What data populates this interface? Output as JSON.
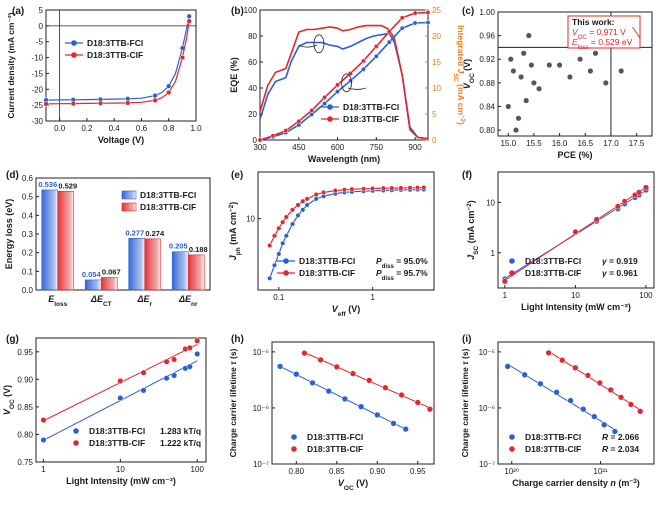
{
  "colors": {
    "blue": "#2a5fd6",
    "red": "#e0282e",
    "orange": "#ef7c1a",
    "gray": "#555555",
    "dark": "#1a1a1a"
  },
  "chart_data": [
    {
      "id": "a",
      "type": "line",
      "panel_label": "(a)",
      "xlabel": "Voltage (V)",
      "ylabel": "Current density (mA cm⁻²)",
      "xlim": [
        -0.1,
        1.0
      ],
      "ylim": [
        -30,
        5
      ],
      "xticks": [
        "0.0",
        "0.2",
        "0.4",
        "0.6",
        "0.8",
        "1.0"
      ],
      "yticks": [
        "-30",
        "-25",
        "-20",
        "-15",
        "-10",
        "-5",
        "0",
        "5"
      ],
      "series": [
        {
          "name": "D18:3TTB-FCl",
          "color": "#2a5fd6",
          "x": [
            -0.1,
            0.0,
            0.1,
            0.2,
            0.3,
            0.4,
            0.5,
            0.6,
            0.7,
            0.75,
            0.8,
            0.85,
            0.9,
            0.93,
            0.95
          ],
          "y": [
            -23.4,
            -23.35,
            -23.3,
            -23.25,
            -23.2,
            -23.1,
            -23.0,
            -22.8,
            -22.0,
            -21.0,
            -19.0,
            -15.0,
            -7.0,
            -1.0,
            3.0
          ]
        },
        {
          "name": "D18:3TTB-ClF",
          "color": "#e0282e",
          "x": [
            -0.1,
            0.0,
            0.1,
            0.2,
            0.3,
            0.4,
            0.5,
            0.6,
            0.7,
            0.75,
            0.8,
            0.85,
            0.9,
            0.93,
            0.95
          ],
          "y": [
            -24.6,
            -24.55,
            -24.5,
            -24.45,
            -24.4,
            -24.35,
            -24.3,
            -24.1,
            -23.5,
            -22.7,
            -21.0,
            -17.5,
            -10.0,
            -4.0,
            1.5
          ]
        }
      ]
    },
    {
      "id": "b",
      "type": "line",
      "panel_label": "(b)",
      "xlabel": "Wavelength (nm)",
      "ylabel": "EQE (%)",
      "y2label": "Integrated J_SC (mA cm⁻²)",
      "xlim": [
        300,
        950
      ],
      "ylim": [
        0,
        100
      ],
      "y2lim": [
        0,
        25
      ],
      "xticks": [
        "300",
        "450",
        "600",
        "750",
        "900"
      ],
      "yticks": [
        "0",
        "20",
        "40",
        "60",
        "80",
        "100"
      ],
      "y2ticks": [
        "0",
        "5",
        "10",
        "15",
        "20",
        "25"
      ],
      "series": [
        {
          "name": "D18:3TTB-FCl EQE",
          "color": "#2a5fd6",
          "x": [
            300,
            330,
            360,
            400,
            420,
            450,
            480,
            510,
            540,
            570,
            600,
            620,
            650,
            680,
            710,
            740,
            770,
            800,
            820,
            850,
            880,
            910,
            950
          ],
          "y": [
            16,
            35,
            45,
            48,
            60,
            72,
            75,
            75,
            75,
            73,
            72,
            70,
            72,
            75,
            78,
            80,
            81,
            82,
            75,
            50,
            10,
            2,
            1
          ]
        },
        {
          "name": "D18:3TTB-ClF EQE",
          "color": "#e0282e",
          "x": [
            300,
            330,
            360,
            400,
            420,
            450,
            480,
            510,
            540,
            570,
            600,
            620,
            650,
            680,
            710,
            740,
            770,
            800,
            820,
            850,
            880,
            910,
            950
          ],
          "y": [
            22,
            42,
            52,
            55,
            66,
            83,
            85,
            85,
            86,
            87,
            86,
            84,
            85,
            87,
            88,
            88,
            88,
            85,
            78,
            50,
            8,
            2,
            1
          ]
        },
        {
          "name": "D18:3TTB-FCl Integrated J_SC",
          "color": "#2a5fd6",
          "axis": "right",
          "x": [
            300,
            350,
            400,
            450,
            500,
            550,
            600,
            650,
            700,
            750,
            800,
            850,
            900,
            950
          ],
          "y": [
            0,
            0.6,
            1.4,
            2.9,
            4.9,
            7.0,
            9.3,
            11.4,
            13.6,
            16.1,
            18.8,
            21.5,
            22.5,
            22.6
          ]
        },
        {
          "name": "D18:3TTB-ClF Integrated J_SC",
          "color": "#e0282e",
          "axis": "right",
          "x": [
            300,
            350,
            400,
            450,
            500,
            550,
            600,
            650,
            700,
            750,
            800,
            850,
            900,
            950
          ],
          "y": [
            0,
            0.8,
            1.8,
            3.6,
            5.7,
            8.2,
            10.6,
            12.8,
            15.2,
            18.0,
            20.8,
            23.5,
            24.4,
            24.5
          ]
        }
      ]
    },
    {
      "id": "c",
      "type": "scatter",
      "panel_label": "(c)",
      "xlabel": "PCE (%)",
      "ylabel": "V_OC (V)",
      "xlim": [
        14.8,
        17.8
      ],
      "ylim": [
        0.79,
        1.0
      ],
      "xticks": [
        "15.0",
        "15.5",
        "16.0",
        "16.5",
        "17.0",
        "17.5"
      ],
      "yticks": [
        "0.80",
        "0.84",
        "0.88",
        "0.92",
        "0.96",
        "1.00"
      ],
      "reference_lines": {
        "x": 17.0,
        "y": 0.94
      },
      "points_x": [
        15.0,
        15.1,
        15.2,
        15.3,
        15.4,
        15.5,
        15.6,
        15.05,
        15.25,
        15.45,
        15.8,
        16.0,
        16.2,
        16.4,
        16.6,
        16.9,
        17.2,
        15.15,
        15.35,
        16.7
      ],
      "points_y": [
        0.84,
        0.9,
        0.82,
        0.93,
        0.96,
        0.88,
        0.87,
        0.92,
        0.89,
        0.91,
        0.91,
        0.91,
        0.89,
        0.92,
        0.9,
        0.88,
        0.9,
        0.8,
        0.85,
        0.93
      ],
      "highlight": {
        "x": 17.5,
        "y": 0.971,
        "color": "#e0282e"
      },
      "annotation": {
        "line1": "This work:",
        "line2": "V_OC = 0.971 V",
        "line3": "E_loss = 0.529 eV",
        "voc_label": "V",
        "voc_sub": "OC",
        "voc_value": " = 0.971 V",
        "eloss_label": "E",
        "eloss_sub": "loss",
        "eloss_value": " = 0.529 eV"
      }
    },
    {
      "id": "d",
      "type": "bar",
      "panel_label": "(d)",
      "ylabel": "Energy loss (eV)",
      "ylim": [
        0,
        0.6
      ],
      "yticks": [
        "0.0",
        "0.1",
        "0.2",
        "0.3",
        "0.4",
        "0.5",
        "0.6"
      ],
      "categories": [
        "E_loss",
        "ΔE_CT",
        "ΔE_r",
        "ΔE_nr"
      ],
      "category_labels": [
        {
          "main": "E",
          "sub": "loss"
        },
        {
          "main": "ΔE",
          "sub": "CT"
        },
        {
          "main": "ΔE",
          "sub": "r"
        },
        {
          "main": "ΔE",
          "sub": "nr"
        }
      ],
      "series": [
        {
          "name": "D18:3TTB-FCl",
          "color": "#2a5fd6",
          "values": [
            0.536,
            0.054,
            0.277,
            0.205
          ],
          "labels": [
            "0.536",
            "0.054",
            "0.277",
            "0.205"
          ]
        },
        {
          "name": "D18:3TTB-ClF",
          "color": "#e0282e",
          "values": [
            0.529,
            0.067,
            0.274,
            0.188
          ],
          "labels": [
            "0.529",
            "0.067",
            "0.274",
            "0.188"
          ]
        }
      ]
    },
    {
      "id": "e",
      "type": "line",
      "panel_label": "(e)",
      "xscale": "log",
      "yscale": "log",
      "xlabel": "V_eff (V)",
      "ylabel": "J_ph (mA cm⁻²)",
      "xlim": [
        0.06,
        4.5
      ],
      "ylim": [
        1.2,
        40
      ],
      "xticks": [
        "0.1",
        "1"
      ],
      "yticks": [
        "10"
      ],
      "series": [
        {
          "name": "D18:3TTB-FCl",
          "color": "#2a5fd6",
          "stat_label": "P",
          "stat_sub": "diss",
          "stat_value": " = 95.0%",
          "x": [
            0.08,
            0.09,
            0.1,
            0.11,
            0.12,
            0.14,
            0.16,
            0.18,
            0.2,
            0.25,
            0.3,
            0.4,
            0.5,
            0.6,
            0.8,
            1.0,
            1.3,
            1.6,
            2.0,
            2.5,
            3.0,
            3.5
          ],
          "y": [
            1.7,
            2.5,
            3.5,
            4.8,
            6.0,
            8.5,
            11,
            13,
            15,
            18,
            19.5,
            21,
            21.8,
            22.2,
            22.6,
            22.9,
            23.1,
            23.3,
            23.5,
            23.6,
            23.7,
            23.8
          ]
        },
        {
          "name": "D18:3TTB-ClF",
          "color": "#e0282e",
          "stat_label": "P",
          "stat_sub": "diss",
          "stat_value": " = 95.7%",
          "x": [
            0.08,
            0.09,
            0.1,
            0.11,
            0.12,
            0.14,
            0.16,
            0.18,
            0.2,
            0.25,
            0.3,
            0.4,
            0.5,
            0.6,
            0.8,
            1.0,
            1.3,
            1.6,
            2.0,
            2.5,
            3.0,
            3.5
          ],
          "y": [
            4.5,
            6.0,
            7.5,
            9.0,
            10.5,
            13,
            15,
            16.8,
            18,
            20.5,
            21.8,
            23,
            23.6,
            24,
            24.3,
            24.5,
            24.7,
            24.8,
            24.9,
            25.0,
            25.1,
            25.2
          ]
        }
      ]
    },
    {
      "id": "f",
      "type": "scatter",
      "panel_label": "(f)",
      "xscale": "log",
      "yscale": "log",
      "xlabel": "Light Intensity (mW cm⁻²)",
      "ylabel": "J_SC (mA cm⁻²)",
      "xlim": [
        0.8,
        130
      ],
      "ylim": [
        0.2,
        40
      ],
      "xticks": [
        "1",
        "10",
        "100"
      ],
      "yticks": [
        "1",
        "10"
      ],
      "series": [
        {
          "name": "D18:3TTB-FCl",
          "color": "#2a5fd6",
          "stat_label": "γ",
          "stat_value": " = 0.919",
          "x": [
            1,
            10,
            20,
            40,
            50,
            70,
            80,
            100
          ],
          "y": [
            0.3,
            2.5,
            4.2,
            7.4,
            9.3,
            12.5,
            14.0,
            17.5
          ]
        },
        {
          "name": "D18:3TTB-ClF",
          "color": "#e0282e",
          "stat_label": "γ",
          "stat_value": " = 0.961",
          "x": [
            1,
            10,
            20,
            40,
            50,
            70,
            80,
            100
          ],
          "y": [
            0.27,
            2.6,
            4.6,
            8.3,
            10.5,
            14.0,
            15.8,
            19.8
          ]
        }
      ]
    },
    {
      "id": "g",
      "type": "scatter",
      "panel_label": "(g)",
      "xscale": "log",
      "xlabel": "Light Intensity (mW cm⁻²)",
      "ylabel": "V_OC (V)",
      "xlim": [
        0.8,
        130
      ],
      "ylim": [
        0.75,
        0.975
      ],
      "xticks": [
        "1",
        "10",
        "100"
      ],
      "yticks": [
        "0.75",
        "0.80",
        "0.85",
        "0.90",
        "0.95"
      ],
      "series": [
        {
          "name": "D18:3TTB-FCl",
          "color": "#2a5fd6",
          "stat_value": "1.283 kT/q",
          "x": [
            1,
            10,
            20,
            40,
            50,
            70,
            80,
            100
          ],
          "y": [
            0.79,
            0.866,
            0.88,
            0.902,
            0.907,
            0.92,
            0.923,
            0.946
          ]
        },
        {
          "name": "D18:3TTB-ClF",
          "color": "#e0282e",
          "stat_value": "1.222 kT/q",
          "x": [
            1,
            10,
            20,
            40,
            50,
            70,
            80,
            100
          ],
          "y": [
            0.826,
            0.897,
            0.912,
            0.932,
            0.936,
            0.955,
            0.957,
            0.97
          ]
        }
      ]
    },
    {
      "id": "h",
      "type": "scatter",
      "panel_label": "(h)",
      "yscale": "log",
      "xlabel": "V_OC (V)",
      "ylabel": "Charge carrier lifetime τ (s)",
      "xlim": [
        0.77,
        0.97
      ],
      "ylim": [
        1e-07,
        1.5e-05
      ],
      "xticks": [
        "0.80",
        "0.85",
        "0.90",
        "0.95"
      ],
      "yticks": [
        "10⁻⁷",
        "10⁻⁶",
        "10⁻⁵"
      ],
      "series": [
        {
          "name": "D18:3TTB-FCl",
          "color": "#2a5fd6",
          "x": [
            0.78,
            0.8,
            0.82,
            0.84,
            0.86,
            0.88,
            0.9,
            0.92,
            0.935
          ],
          "y": [
            5.5e-06,
            4e-06,
            2.8e-06,
            2e-06,
            1.45e-06,
            1.05e-06,
            7.5e-07,
            5.3e-07,
            4.2e-07
          ]
        },
        {
          "name": "D18:3TTB-ClF",
          "color": "#e0282e",
          "x": [
            0.81,
            0.83,
            0.85,
            0.87,
            0.89,
            0.91,
            0.93,
            0.95,
            0.965
          ],
          "y": [
            9.5e-06,
            7.2e-06,
            5.4e-06,
            4.1e-06,
            3.1e-06,
            2.3e-06,
            1.7e-06,
            1.25e-06,
            9.5e-07
          ]
        }
      ]
    },
    {
      "id": "i",
      "type": "scatter",
      "panel_label": "(i)",
      "xscale": "log",
      "yscale": "log",
      "xlabel": "Charge carrier density n (m⁻³)",
      "ylabel": "Charge carrier lifetime τ (s)",
      "xlim": [
        7e+19,
        4e+21
      ],
      "ylim": [
        1e-07,
        1.5e-05
      ],
      "xticks": [
        "10²⁰",
        "10²¹"
      ],
      "yticks": [
        "10⁻⁷",
        "10⁻⁶",
        "10⁻⁵"
      ],
      "series": [
        {
          "name": "D18:3TTB-FCl",
          "color": "#2a5fd6",
          "stat_label": "R",
          "stat_value": " = 2.066",
          "x": [
            9e+19,
            1.4e+20,
            2.1e+20,
            3.2e+20,
            4.6e+20,
            6.4e+20,
            8.5e+20,
            1.1e+21,
            1.45e+21
          ],
          "y": [
            5.5e-06,
            3.9e-06,
            2.7e-06,
            1.9e-06,
            1.35e-06,
            9.5e-07,
            7e-07,
            5e-07,
            3.8e-07
          ]
        },
        {
          "name": "D18:3TTB-ClF",
          "color": "#e0282e",
          "stat_label": "R",
          "stat_value": " = 2.034",
          "x": [
            2.6e+20,
            3.7e+20,
            5.2e+20,
            7.2e+20,
            9.8e+20,
            1.3e+21,
            1.7e+21,
            2.2e+21,
            2.8e+21
          ],
          "y": [
            9.6e-06,
            7.1e-06,
            5.2e-06,
            3.8e-06,
            2.8e-06,
            2.1e-06,
            1.55e-06,
            1.15e-06,
            8.7e-07
          ]
        }
      ]
    }
  ]
}
